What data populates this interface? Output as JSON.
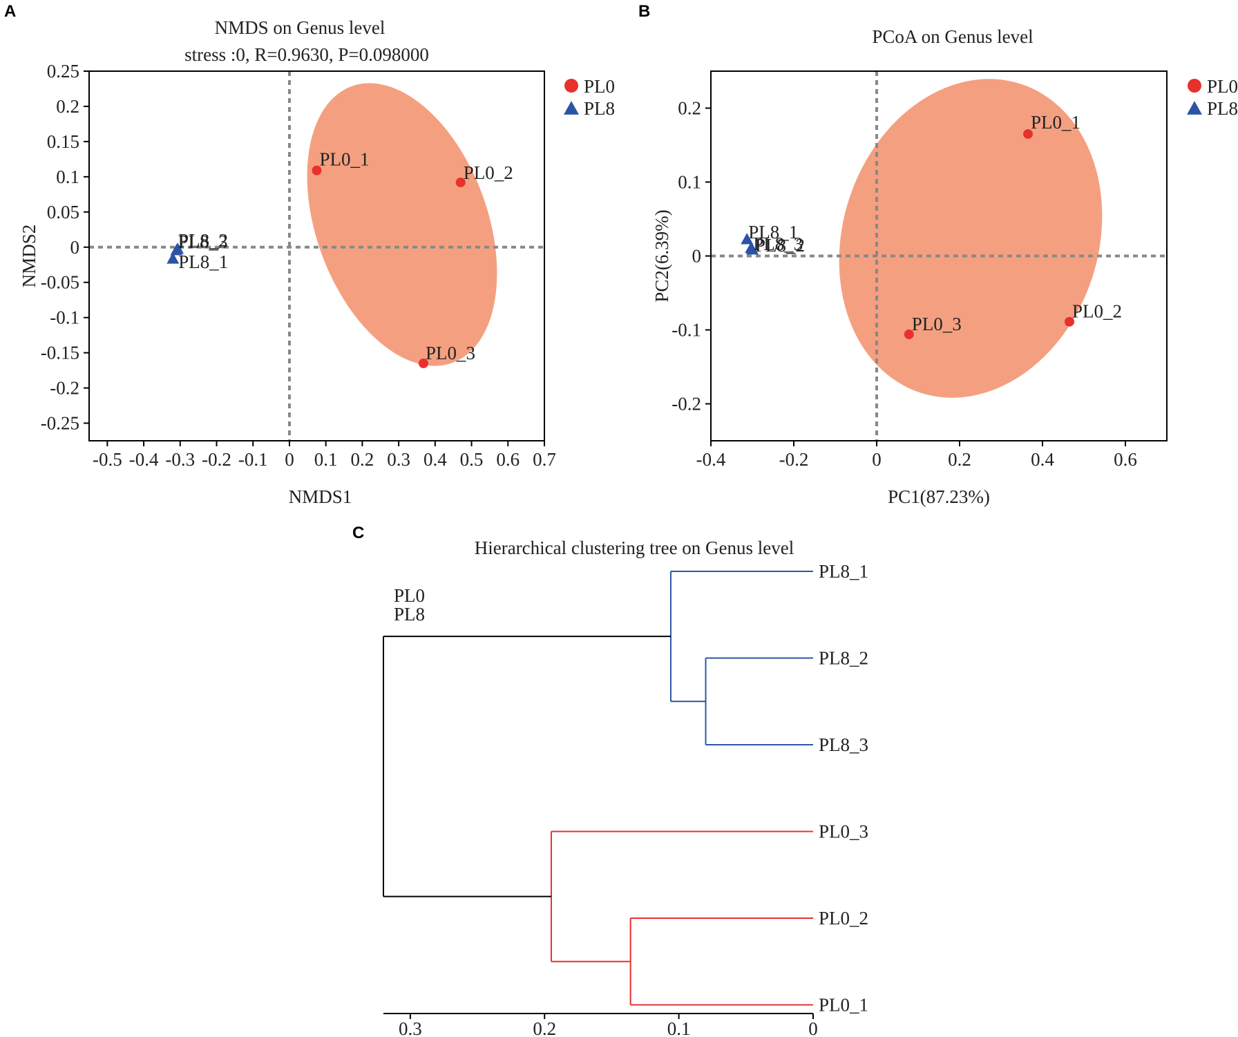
{
  "chart_data": [
    {
      "type": "scatter",
      "panel_label": "A",
      "title": "NMDS on Genus level",
      "subtitle": "stress :0, R=0.9630, P=0.098000",
      "xlabel": "NMDS1",
      "ylabel": "NMDS2",
      "xlim": [
        -0.55,
        0.7
      ],
      "ylim": [
        -0.275,
        0.25
      ],
      "xticks": [
        -0.5,
        -0.4,
        -0.3,
        -0.2,
        -0.1,
        0,
        0.1,
        0.2,
        0.3,
        0.4,
        0.5,
        0.6,
        0.7
      ],
      "xtick_labels": [
        "-0.5",
        "-0.4",
        "-0.3",
        "-0.2",
        "-0.1",
        "0",
        "0.1",
        "0.2",
        "0.3",
        "0.4",
        "0.5",
        "0.6",
        "0.7"
      ],
      "yticks": [
        0.25,
        0.2,
        0.15,
        0.1,
        0.05,
        0,
        -0.05,
        -0.1,
        -0.15,
        -0.2,
        -0.25
      ],
      "ytick_labels": [
        "0.25",
        "0.2",
        "0.15",
        "0.1",
        "0.05",
        "0",
        "-0.05",
        "-0.1",
        "-0.15",
        "-0.2",
        "-0.25"
      ],
      "legend": [
        {
          "name": "PL0",
          "marker": "circle",
          "color": "#e8302d"
        },
        {
          "name": "PL8",
          "marker": "triangle",
          "color": "#2b54a6"
        }
      ],
      "series": [
        {
          "name": "PL0",
          "points": [
            {
              "label": "PL0_1",
              "x": 0.075,
              "y": 0.109
            },
            {
              "label": "PL0_2",
              "x": 0.47,
              "y": 0.092
            },
            {
              "label": "PL0_3",
              "x": 0.368,
              "y": -0.165
            }
          ]
        },
        {
          "name": "PL8",
          "points": [
            {
              "label": "PL8_1",
              "x": -0.32,
              "y": -0.017
            },
            {
              "label": "PL8_2",
              "x": -0.307,
              "y": -0.003
            },
            {
              "label": "PL8_3",
              "x": -0.31,
              "y": -0.005
            }
          ]
        }
      ],
      "ellipse": {
        "group": "PL0",
        "color": "#f4a080"
      },
      "reference_lines": {
        "x": 0,
        "y": 0
      }
    },
    {
      "type": "scatter",
      "panel_label": "B",
      "title": "PCoA on Genus level",
      "xlabel": "PC1(87.23%)",
      "ylabel": "PC2(6.39%)",
      "xlim": [
        -0.4,
        0.7
      ],
      "ylim": [
        -0.25,
        0.25
      ],
      "xticks": [
        -0.4,
        -0.2,
        0,
        0.2,
        0.4,
        0.6
      ],
      "xtick_labels": [
        "-0.4",
        "-0.2",
        "0",
        "0.2",
        "0.4",
        "0.6"
      ],
      "yticks": [
        0.2,
        0.1,
        0,
        -0.1,
        -0.2
      ],
      "ytick_labels": [
        "0.2",
        "0.1",
        "0",
        "-0.1",
        "-0.2"
      ],
      "legend": [
        {
          "name": "PL0",
          "marker": "circle",
          "color": "#e8302d"
        },
        {
          "name": "PL8",
          "marker": "triangle",
          "color": "#2b54a6"
        }
      ],
      "series": [
        {
          "name": "PL0",
          "points": [
            {
              "label": "PL0_1",
              "x": 0.365,
              "y": 0.165
            },
            {
              "label": "PL0_2",
              "x": 0.465,
              "y": -0.089
            },
            {
              "label": "PL0_3",
              "x": 0.078,
              "y": -0.106
            }
          ]
        },
        {
          "name": "PL8",
          "points": [
            {
              "label": "PL8_1",
              "x": -0.313,
              "y": 0.022
            },
            {
              "label": "PL8_2",
              "x": -0.3,
              "y": 0.008
            },
            {
              "label": "PL8_3",
              "x": -0.303,
              "y": 0.01
            }
          ]
        }
      ],
      "ellipse": {
        "group": "PL0",
        "color": "#f4a080"
      },
      "reference_lines": {
        "x": 0,
        "y": 0
      }
    },
    {
      "type": "dendrogram",
      "panel_label": "C",
      "title": "Hierarchical clustering tree on Genus level",
      "legend": [
        "PL0",
        "PL8"
      ],
      "xlim": [
        0.32,
        0
      ],
      "xticks": [
        0.3,
        0.2,
        0.1,
        0
      ],
      "xtick_labels": [
        "0.3",
        "0.2",
        "0.1",
        "0"
      ],
      "leaves": [
        "PL8_1",
        "PL8_2",
        "PL8_3",
        "PL0_3",
        "PL0_2",
        "PL0_1"
      ],
      "merges": [
        {
          "children": [
            "PL8_2",
            "PL8_3"
          ],
          "height": 0.08,
          "color": "#2b54a6"
        },
        {
          "children": [
            "PL8_1",
            "PL8_2|PL8_3"
          ],
          "height": 0.106,
          "color": "#2b54a6"
        },
        {
          "children": [
            "PL0_2",
            "PL0_1"
          ],
          "height": 0.136,
          "color": "#e8302d"
        },
        {
          "children": [
            "PL0_3",
            "PL0_2|PL0_1"
          ],
          "height": 0.195,
          "color": "#e8302d"
        },
        {
          "children": [
            "PL8",
            "PL0"
          ],
          "height": 0.32,
          "color": "#000000"
        }
      ]
    }
  ]
}
